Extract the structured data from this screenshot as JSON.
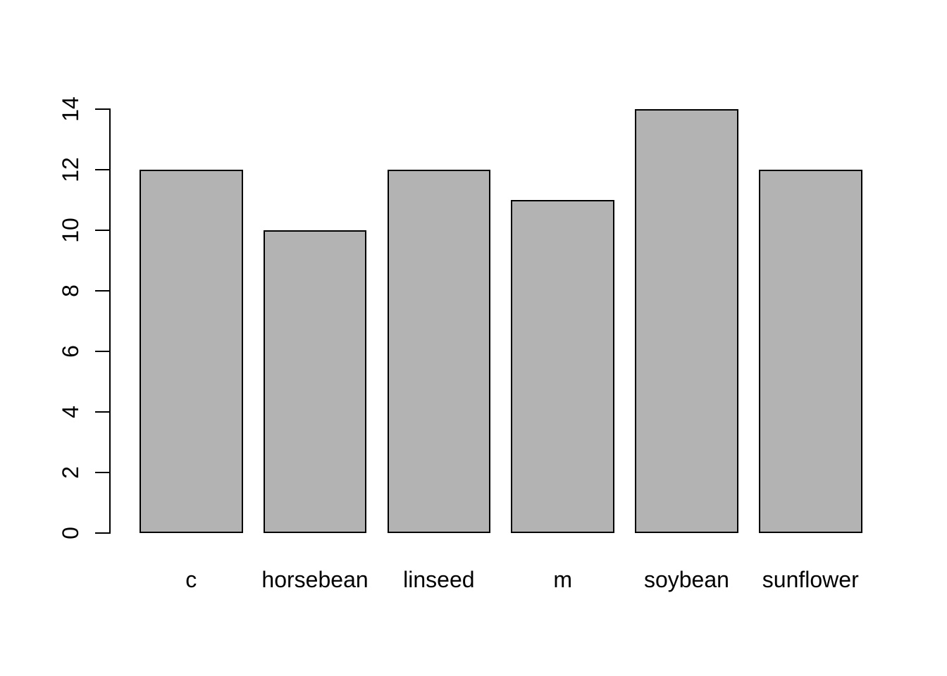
{
  "chart_data": {
    "type": "bar",
    "title": "",
    "xlabel": "",
    "ylabel": "",
    "categories": [
      "c",
      "horsebean",
      "linseed",
      "m",
      "soybean",
      "sunflower"
    ],
    "values": [
      12,
      10,
      12,
      11,
      14,
      12
    ],
    "ylim": [
      0,
      14
    ],
    "yticks": [
      0,
      2,
      4,
      6,
      8,
      10,
      12,
      14
    ],
    "grid": false,
    "legend": null,
    "bar_space_ratio": 0.2
  },
  "colors": {
    "bar_fill": "#b3b3b3",
    "bar_border": "#000000",
    "axis": "#000000",
    "text": "#000000",
    "background": "#ffffff"
  }
}
